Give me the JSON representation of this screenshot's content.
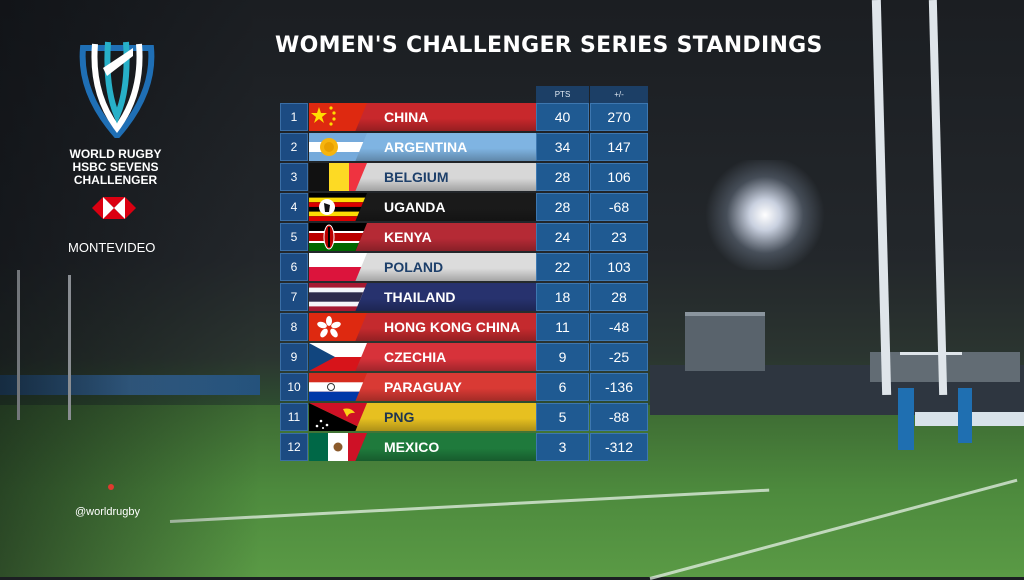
{
  "branding": {
    "logo_lines": [
      "WORLD RUGBY",
      "HSBC SEVENS",
      "CHALLENGER"
    ],
    "venue": "MONTEVIDEO",
    "handle": "@worldrugby"
  },
  "title": "WOMEN'S CHALLENGER SERIES STANDINGS",
  "table": {
    "headers": {
      "pts": "PTS",
      "diff": "+/-"
    },
    "rows": [
      {
        "rank": "1",
        "team": "CHINA",
        "pts": "40",
        "diff": "270",
        "bar_color": "#c8282c",
        "flag": "china-flag"
      },
      {
        "rank": "2",
        "team": "ARGENTINA",
        "pts": "34",
        "diff": "147",
        "bar_color": "#7fb4e2",
        "flag": "argentina-flag"
      },
      {
        "rank": "3",
        "team": "BELGIUM",
        "pts": "28",
        "diff": "106",
        "bar_color": "#d7d7d7",
        "flag": "belgium-flag"
      },
      {
        "rank": "4",
        "team": "UGANDA",
        "pts": "28",
        "diff": "-68",
        "bar_color": "#1a1a1a",
        "flag": "uganda-flag"
      },
      {
        "rank": "5",
        "team": "KENYA",
        "pts": "24",
        "diff": "23",
        "bar_color": "#b52a35",
        "flag": "kenya-flag"
      },
      {
        "rank": "6",
        "team": "POLAND",
        "pts": "22",
        "diff": "103",
        "bar_color": "#dcdcdc",
        "flag": "poland-flag"
      },
      {
        "rank": "7",
        "team": "THAILAND",
        "pts": "18",
        "diff": "28",
        "bar_color": "#27326e",
        "flag": "thailand-flag"
      },
      {
        "rank": "8",
        "team": "HONG KONG CHINA",
        "pts": "11",
        "diff": "-48",
        "bar_color": "#c42a2e",
        "flag": "hong-kong-flag"
      },
      {
        "rank": "9",
        "team": "CZECHIA",
        "pts": "9",
        "diff": "-25",
        "bar_color": "#d7323a",
        "flag": "czechia-flag"
      },
      {
        "rank": "10",
        "team": "PARAGUAY",
        "pts": "6",
        "diff": "-136",
        "bar_color": "#d93a34",
        "flag": "paraguay-flag"
      },
      {
        "rank": "11",
        "team": "PNG",
        "pts": "5",
        "diff": "-88",
        "bar_color": "#e7c020",
        "flag": "png-flag"
      },
      {
        "rank": "12",
        "team": "MEXICO",
        "pts": "3",
        "diff": "-312",
        "bar_color": "#1f7a3c",
        "flag": "mexico-flag"
      }
    ]
  }
}
